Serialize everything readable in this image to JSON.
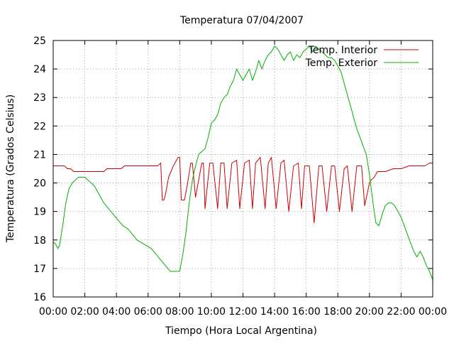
{
  "chart_data": {
    "type": "line",
    "title": "Temperatura 07/04/2007",
    "xlabel": "Tiempo (Hora Local Argentina)",
    "ylabel": "Temperatura (Grados Celsius)",
    "xlim": [
      0,
      24
    ],
    "ylim": [
      16,
      25
    ],
    "x_tick_labels": [
      "00:00",
      "02:00",
      "04:00",
      "06:00",
      "08:00",
      "10:00",
      "12:00",
      "14:00",
      "16:00",
      "18:00",
      "20:00",
      "22:00",
      "00:00"
    ],
    "y_tick_labels": [
      "16",
      "17",
      "18",
      "19",
      "20",
      "21",
      "22",
      "23",
      "24",
      "25"
    ],
    "grid": true,
    "legend_position": "top-right",
    "x_unit": "hours",
    "series": [
      {
        "name": "Temp. Interior",
        "color": "#cc0000",
        "x": [
          0,
          0.7,
          0.9,
          1.1,
          1.3,
          3.2,
          3.4,
          4.3,
          4.5,
          6.0,
          6.2,
          6.6,
          6.8,
          6.9,
          7.0,
          7.1,
          7.3,
          7.6,
          7.9,
          8.0,
          8.1,
          8.3,
          8.5,
          8.7,
          8.8,
          9.0,
          9.4,
          9.5,
          9.6,
          9.9,
          10.1,
          10.4,
          10.6,
          10.8,
          11.0,
          11.3,
          11.6,
          11.8,
          12.1,
          12.4,
          12.6,
          12.8,
          13.1,
          13.4,
          13.6,
          13.8,
          14.1,
          14.4,
          14.6,
          14.9,
          15.2,
          15.5,
          15.7,
          15.9,
          16.2,
          16.5,
          16.8,
          17.0,
          17.3,
          17.6,
          17.8,
          18.1,
          18.4,
          18.6,
          18.9,
          19.2,
          19.5,
          19.7,
          20.0,
          20.1,
          20.3,
          20.5,
          21.0,
          21.5,
          22.0,
          22.5,
          23.0,
          23.5,
          23.8,
          24.0
        ],
        "y": [
          20.6,
          20.6,
          20.5,
          20.5,
          20.4,
          20.4,
          20.5,
          20.5,
          20.6,
          20.6,
          20.6,
          20.6,
          20.7,
          19.4,
          19.4,
          19.6,
          20.2,
          20.6,
          20.9,
          20.9,
          19.4,
          19.4,
          20.0,
          20.7,
          20.7,
          19.5,
          20.7,
          20.7,
          19.1,
          20.7,
          20.7,
          19.1,
          20.7,
          20.7,
          19.1,
          20.7,
          20.8,
          19.1,
          20.7,
          20.8,
          19.1,
          20.7,
          20.9,
          19.1,
          20.7,
          20.9,
          19.1,
          20.7,
          20.8,
          19.0,
          20.6,
          20.7,
          19.1,
          20.6,
          20.6,
          18.6,
          20.6,
          20.6,
          19.0,
          20.6,
          20.6,
          19.0,
          20.5,
          20.6,
          19.0,
          20.6,
          20.6,
          19.2,
          20.0,
          20.1,
          20.2,
          20.4,
          20.4,
          20.5,
          20.5,
          20.6,
          20.6,
          20.6,
          20.7,
          20.7
        ]
      },
      {
        "name": "Temp. Exterior",
        "color": "#00b000",
        "x": [
          0,
          0.1,
          0.2,
          0.3,
          0.4,
          0.6,
          0.8,
          1.0,
          1.2,
          1.4,
          1.6,
          1.8,
          2.0,
          2.2,
          2.4,
          2.6,
          2.8,
          3.0,
          3.2,
          3.5,
          3.8,
          4.1,
          4.4,
          4.7,
          5.0,
          5.3,
          5.6,
          5.9,
          6.2,
          6.5,
          6.8,
          7.1,
          7.4,
          7.7,
          8.0,
          8.2,
          8.4,
          8.6,
          8.8,
          9.0,
          9.2,
          9.4,
          9.6,
          9.8,
          10.0,
          10.2,
          10.4,
          10.6,
          10.8,
          11.0,
          11.2,
          11.4,
          11.6,
          11.8,
          12.0,
          12.2,
          12.4,
          12.6,
          12.8,
          13.0,
          13.2,
          13.4,
          13.6,
          13.8,
          14.0,
          14.2,
          14.4,
          14.6,
          14.8,
          15.0,
          15.2,
          15.4,
          15.6,
          15.8,
          16.0,
          16.2,
          16.4,
          16.6,
          16.8,
          17.0,
          17.2,
          17.4,
          17.6,
          17.8,
          18.0,
          18.2,
          18.4,
          18.6,
          18.8,
          19.0,
          19.2,
          19.4,
          19.6,
          19.8,
          20.0,
          20.2,
          20.4,
          20.6,
          20.8,
          21.0,
          21.2,
          21.4,
          21.6,
          21.8,
          22.0,
          22.2,
          22.4,
          22.6,
          22.8,
          23.0,
          23.2,
          23.4,
          23.6,
          23.8,
          24.0
        ],
        "y": [
          17.9,
          17.9,
          17.8,
          17.7,
          17.8,
          18.5,
          19.3,
          19.8,
          20.0,
          20.1,
          20.2,
          20.2,
          20.2,
          20.1,
          20.0,
          19.9,
          19.7,
          19.5,
          19.3,
          19.1,
          18.9,
          18.7,
          18.5,
          18.4,
          18.2,
          18.0,
          17.9,
          17.8,
          17.7,
          17.5,
          17.3,
          17.1,
          16.9,
          16.9,
          16.9,
          17.5,
          18.3,
          19.3,
          20.1,
          20.6,
          21.0,
          21.1,
          21.2,
          21.6,
          22.1,
          22.2,
          22.4,
          22.8,
          23.0,
          23.1,
          23.4,
          23.6,
          24.0,
          23.8,
          23.6,
          23.8,
          24.0,
          23.6,
          23.9,
          24.3,
          24.0,
          24.3,
          24.5,
          24.6,
          24.8,
          24.7,
          24.5,
          24.3,
          24.5,
          24.6,
          24.3,
          24.5,
          24.4,
          24.6,
          24.7,
          24.8,
          24.6,
          24.8,
          24.7,
          24.6,
          24.5,
          24.4,
          24.4,
          24.3,
          24.1,
          23.9,
          23.5,
          23.1,
          22.7,
          22.3,
          21.9,
          21.6,
          21.3,
          21.0,
          20.3,
          19.4,
          18.6,
          18.5,
          18.9,
          19.2,
          19.3,
          19.3,
          19.2,
          19.0,
          18.8,
          18.5,
          18.2,
          17.9,
          17.6,
          17.4,
          17.6,
          17.4,
          17.1,
          16.9,
          16.6
        ]
      }
    ]
  }
}
